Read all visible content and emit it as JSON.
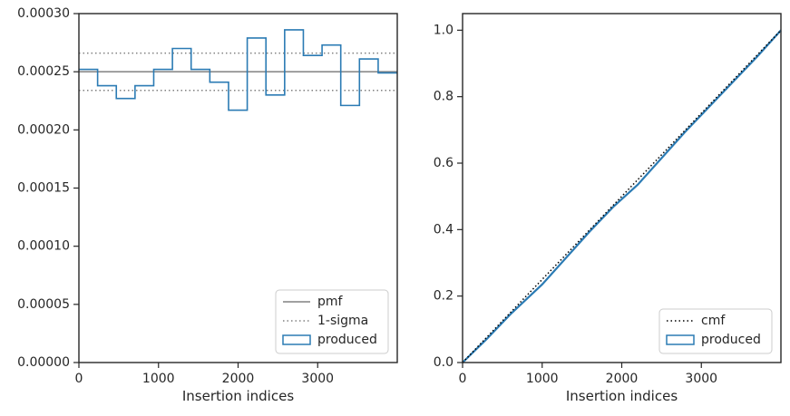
{
  "chart_data": [
    {
      "type": "step",
      "xlabel": "Insertion indices",
      "ylabel": "",
      "xlim": [
        0,
        4000
      ],
      "ylim": [
        0,
        0.0003
      ],
      "xticks": [
        0,
        1000,
        2000,
        3000
      ],
      "xtick_labels": [
        "0",
        "1000",
        "2000",
        "3000"
      ],
      "yticks": [
        0,
        5e-05,
        0.0001,
        0.00015,
        0.0002,
        0.00025,
        0.0003
      ],
      "ytick_labels": [
        "0.00000",
        "0.00005",
        "0.00010",
        "0.00015",
        "0.00020",
        "0.00025",
        "0.00030"
      ],
      "grid": false,
      "legend_position": "lower-right",
      "legend": [
        {
          "label": "pmf",
          "style": "solid",
          "color": "#808080"
        },
        {
          "label": "1-sigma",
          "style": "dotted",
          "color": "#808080"
        },
        {
          "label": "produced",
          "style": "box",
          "color": "#2b7bb4"
        }
      ],
      "pmf": 0.00025,
      "sigma_band": [
        0.000234,
        0.000266
      ],
      "bin_edges": [
        0,
        235,
        470,
        705,
        940,
        1175,
        1410,
        1645,
        1880,
        2115,
        2350,
        2585,
        2820,
        3055,
        3290,
        3525,
        3760,
        4000
      ],
      "produced": [
        0.000252,
        0.000238,
        0.000227,
        0.000238,
        0.000252,
        0.00027,
        0.000252,
        0.000241,
        0.000217,
        0.000279,
        0.00023,
        0.000286,
        0.000264,
        0.000273,
        0.000221,
        0.000261,
        0.000249
      ]
    },
    {
      "type": "line",
      "xlabel": "Insertion indices",
      "ylabel": "",
      "xlim": [
        0,
        4000
      ],
      "ylim": [
        0,
        1.05
      ],
      "xticks": [
        0,
        1000,
        2000,
        3000
      ],
      "xtick_labels": [
        "0",
        "1000",
        "2000",
        "3000"
      ],
      "yticks": [
        0,
        0.2,
        0.4,
        0.6,
        0.8,
        1.0
      ],
      "ytick_labels": [
        "0.0",
        "0.2",
        "0.4",
        "0.6",
        "0.8",
        "1.0"
      ],
      "grid": false,
      "legend_position": "lower-right",
      "legend": [
        {
          "label": "cmf",
          "style": "dotted",
          "color": "#000000"
        },
        {
          "label": "produced",
          "style": "box",
          "color": "#2b7bb4"
        }
      ],
      "cmf_x": [
        0,
        4000
      ],
      "cmf_y": [
        0,
        1
      ],
      "produced_x": [
        0,
        300,
        600,
        1000,
        1300,
        1600,
        1900,
        2200,
        2500,
        2800,
        3100,
        3400,
        3700,
        4000
      ],
      "produced_y": [
        0,
        0.07,
        0.145,
        0.235,
        0.315,
        0.395,
        0.47,
        0.535,
        0.615,
        0.695,
        0.77,
        0.845,
        0.92,
        1.0
      ]
    }
  ]
}
